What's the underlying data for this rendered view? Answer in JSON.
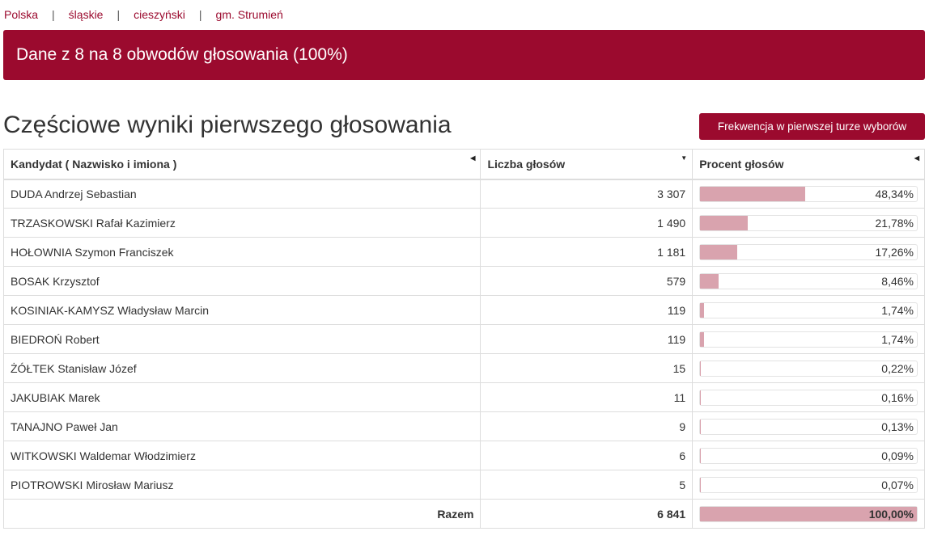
{
  "breadcrumb": [
    "Polska",
    "śląskie",
    "cieszyński",
    "gm. Strumień"
  ],
  "banner_text": "Dane z 8 na 8 obwodów głosowania (100%)",
  "page_title": "Częściowe wyniki pierwszego głosowania",
  "turnout_button_label": "Frekwencja w pierwszej turze wyborów",
  "colors": {
    "accent": "#9b0a2e",
    "bar": "#d9a3ae"
  },
  "table": {
    "headers": {
      "name": "Kandydat ( Nazwisko i imiona )",
      "votes": "Liczba głosów",
      "percent": "Procent głosów"
    },
    "sort_icons": {
      "name": "sort-left-icon",
      "votes": "sort-down-icon",
      "percent": "sort-left-icon"
    },
    "rows": [
      {
        "name": "DUDA Andrzej Sebastian",
        "votes": "3 307",
        "percent": "48,34%",
        "fraction": 0.4834
      },
      {
        "name": "TRZASKOWSKI Rafał Kazimierz",
        "votes": "1 490",
        "percent": "21,78%",
        "fraction": 0.2178
      },
      {
        "name": "HOŁOWNIA Szymon Franciszek",
        "votes": "1 181",
        "percent": "17,26%",
        "fraction": 0.1726
      },
      {
        "name": "BOSAK Krzysztof",
        "votes": "579",
        "percent": "8,46%",
        "fraction": 0.0846
      },
      {
        "name": "KOSINIAK-KAMYSZ Władysław Marcin",
        "votes": "119",
        "percent": "1,74%",
        "fraction": 0.0174
      },
      {
        "name": "BIEDROŃ Robert",
        "votes": "119",
        "percent": "1,74%",
        "fraction": 0.0174
      },
      {
        "name": "ŻÓŁTEK Stanisław Józef",
        "votes": "15",
        "percent": "0,22%",
        "fraction": 0.0022
      },
      {
        "name": "JAKUBIAK Marek",
        "votes": "11",
        "percent": "0,16%",
        "fraction": 0.0016
      },
      {
        "name": "TANAJNO Paweł Jan",
        "votes": "9",
        "percent": "0,13%",
        "fraction": 0.0013
      },
      {
        "name": "WITKOWSKI Waldemar Włodzimierz",
        "votes": "6",
        "percent": "0,09%",
        "fraction": 0.0009
      },
      {
        "name": "PIOTROWSKI Mirosław Mariusz",
        "votes": "5",
        "percent": "0,07%",
        "fraction": 0.0007
      }
    ],
    "total": {
      "label": "Razem",
      "votes": "6 841",
      "percent": "100,00%",
      "fraction": 1.0
    }
  }
}
